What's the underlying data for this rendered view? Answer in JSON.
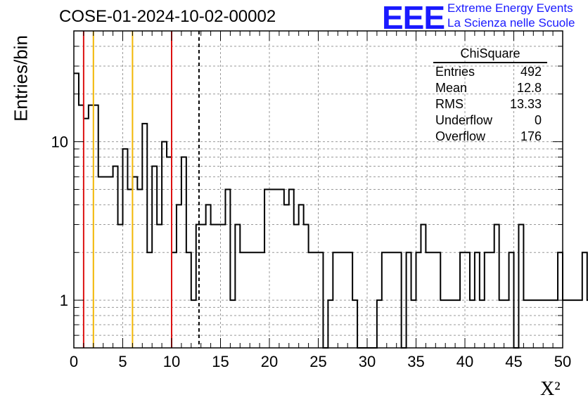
{
  "header": {
    "title": "COSE-01-2024-10-02-00002",
    "logo_mark": "EEE",
    "logo_line1": "Extreme Energy Events",
    "logo_line2": "La Scienza nelle Scuole"
  },
  "stats_box": {
    "title": "ChiSquare",
    "rows": [
      {
        "label": "Entries",
        "value": "492"
      },
      {
        "label": "Mean",
        "value": "12.8"
      },
      {
        "label": "RMS",
        "value": "13.33"
      },
      {
        "label": "Underflow",
        "value": "0"
      },
      {
        "label": "Overflow",
        "value": "176"
      }
    ]
  },
  "colors": {
    "red_line": "#dd1111",
    "yellow_line": "#f2b705",
    "histogram": "#000000",
    "logo": "#1a1aff",
    "grid": "#999999"
  },
  "chart_data": {
    "type": "histogram",
    "title": "COSE-01-2024-10-02-00002",
    "xlabel": "X²",
    "ylabel": "Entries/bin",
    "xlim": [
      0,
      50
    ],
    "ylim": [
      0.5,
      50
    ],
    "yscale": "log",
    "grid": true,
    "xticks": [
      0,
      5,
      10,
      15,
      20,
      25,
      30,
      35,
      40,
      45,
      50
    ],
    "yticks": [
      1,
      10
    ],
    "bin_width": 0.5,
    "counts": [
      27,
      17,
      14,
      17,
      17,
      6,
      6,
      6,
      7,
      3,
      9,
      5,
      6,
      5,
      13,
      2,
      7,
      3,
      10,
      8,
      2,
      4,
      8,
      2,
      1,
      3,
      3,
      4,
      3,
      3,
      3,
      5,
      1,
      3,
      2,
      2,
      2,
      2,
      2,
      5,
      5,
      5,
      5,
      4,
      5,
      3,
      4,
      3,
      2,
      2,
      2,
      0,
      1,
      2,
      2,
      2,
      2,
      1,
      0,
      0,
      0,
      0,
      1,
      2,
      2,
      2,
      2,
      0,
      2,
      1,
      2,
      3,
      2,
      2,
      2,
      1,
      1,
      1,
      1,
      2,
      2,
      1,
      2,
      1,
      2,
      2,
      3,
      1,
      1,
      2,
      0,
      3,
      1,
      1,
      1,
      1,
      1,
      1,
      1,
      2,
      1,
      1,
      1,
      1,
      2,
      1,
      1,
      1,
      2,
      1,
      1,
      1,
      1,
      1,
      1,
      1,
      2,
      2,
      1,
      1,
      1,
      1,
      2,
      1,
      1,
      2,
      1,
      1,
      1,
      1,
      1,
      1,
      1,
      1,
      1,
      1,
      1,
      1,
      1,
      1,
      1,
      1,
      1,
      1,
      1,
      1,
      1,
      1,
      1,
      1,
      1,
      1,
      1,
      1,
      1,
      1,
      1,
      1,
      1,
      1,
      1,
      1,
      1,
      1,
      1,
      1,
      1,
      1,
      1,
      1,
      1,
      1,
      1,
      1,
      1,
      1,
      1,
      1,
      1,
      1,
      1,
      1,
      1,
      1,
      1,
      1,
      1,
      1,
      1,
      1,
      1,
      1,
      1,
      1,
      1,
      1,
      1,
      1,
      1,
      1
    ],
    "vertical_lines": [
      {
        "x": 1,
        "color": "red",
        "style": "solid"
      },
      {
        "x": 2,
        "color": "yellow",
        "style": "solid"
      },
      {
        "x": 6,
        "color": "yellow",
        "style": "solid"
      },
      {
        "x": 10,
        "color": "red",
        "style": "solid"
      },
      {
        "x": 12.8,
        "color": "black",
        "style": "dashed"
      }
    ]
  }
}
